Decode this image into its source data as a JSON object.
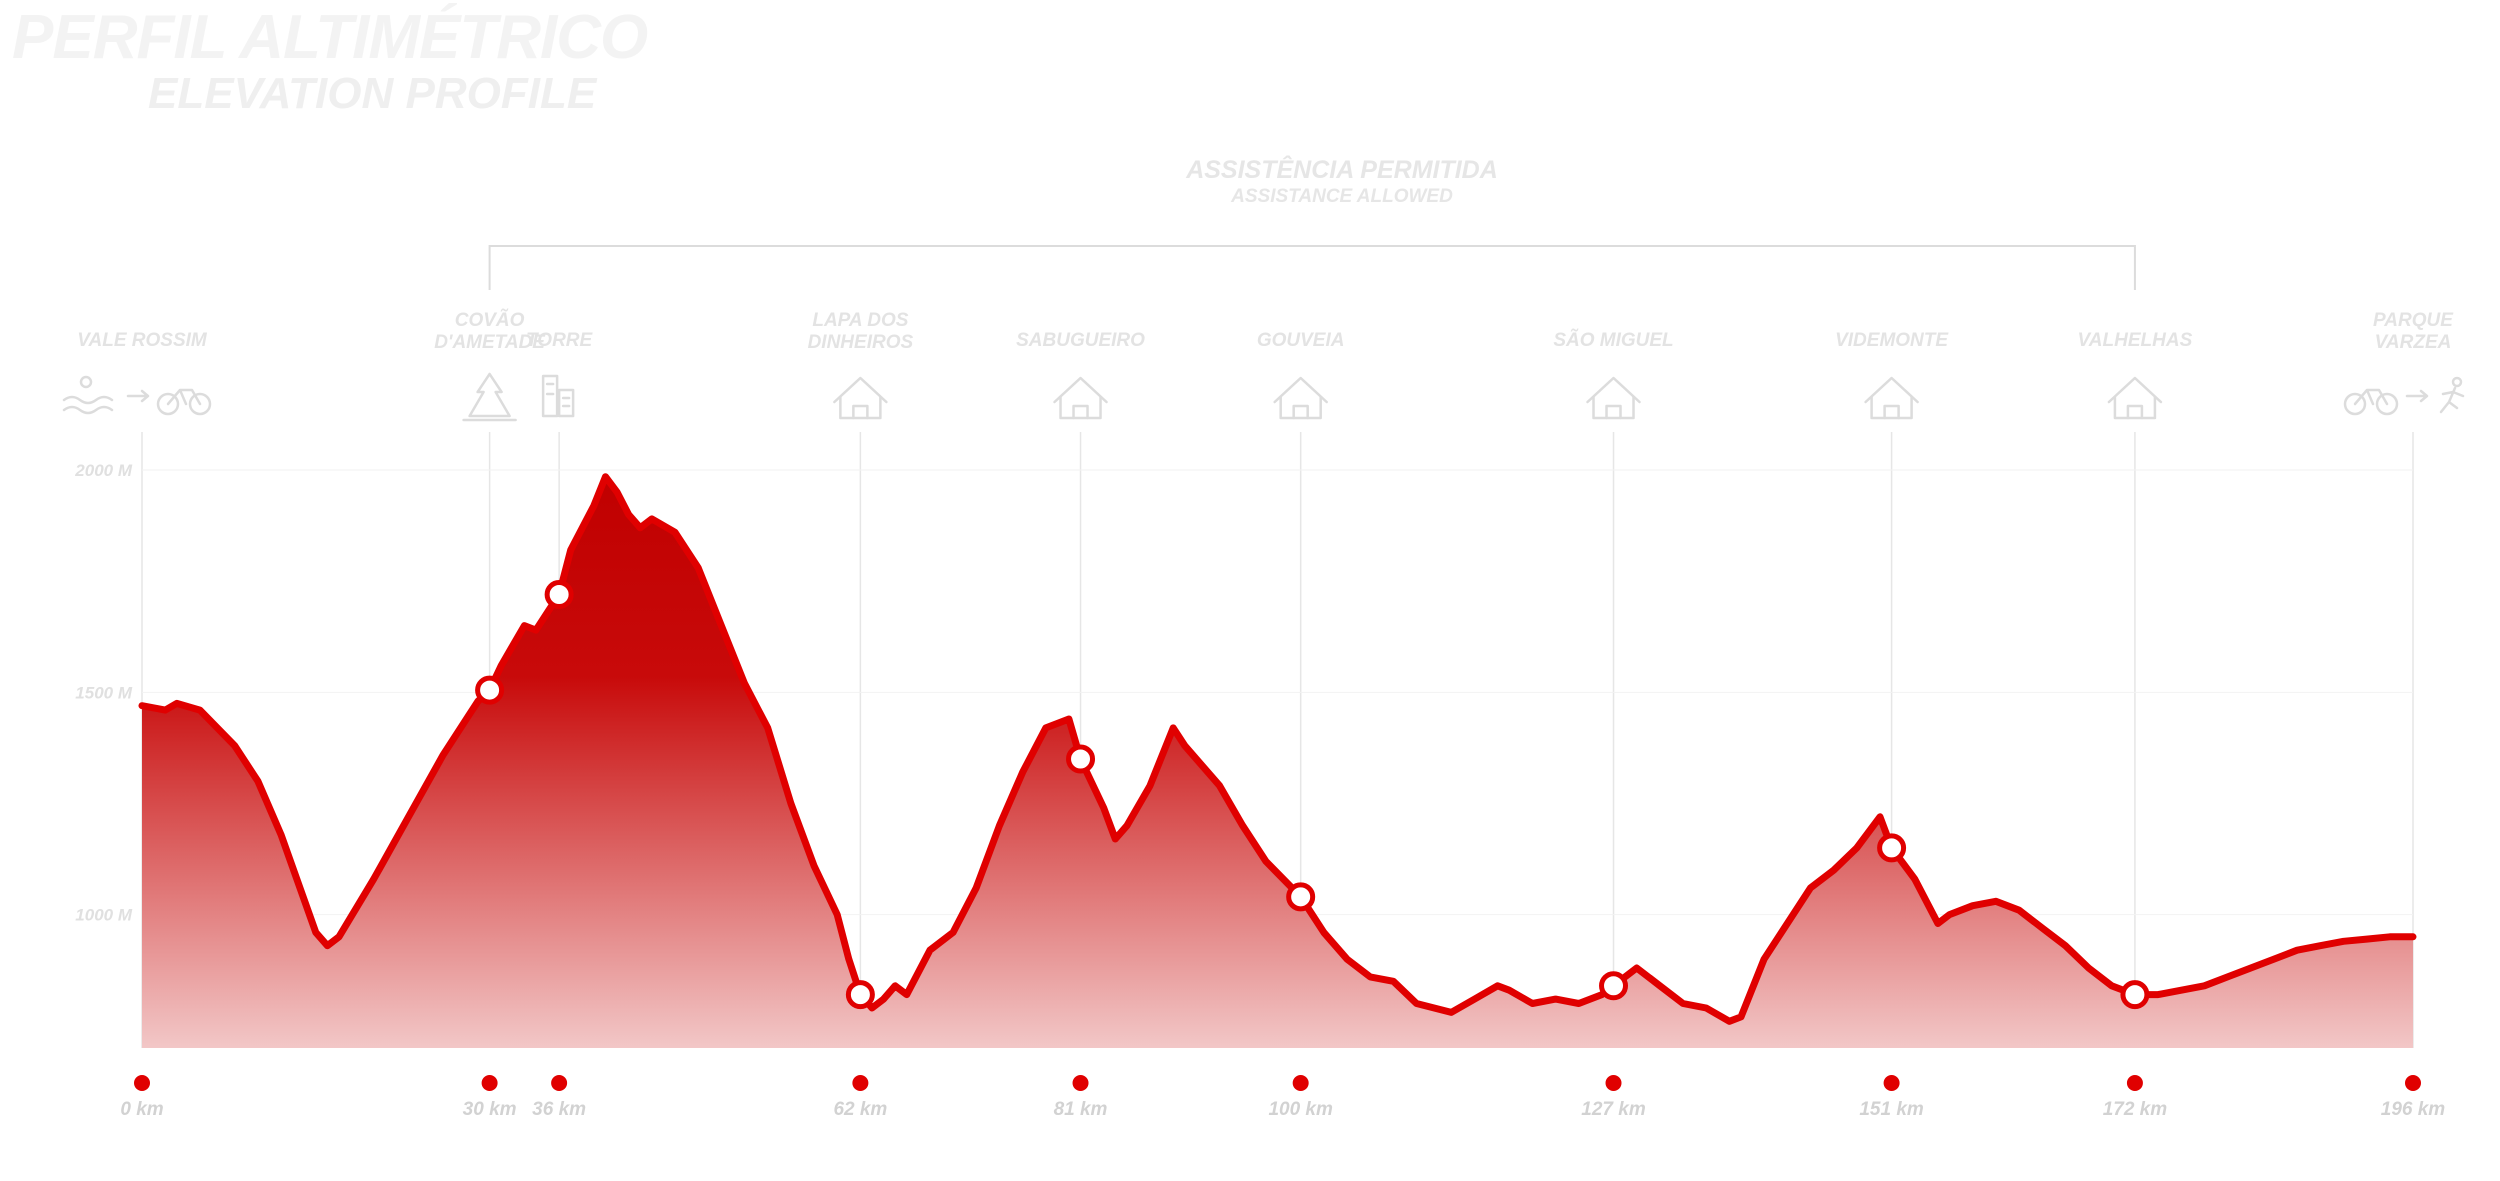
{
  "title": "PERFIL ALTIMÉTRICO",
  "subtitle": "ELEVATION PROFILE",
  "assistance": {
    "label": "ASSISTÊNCIA PERMITIDA",
    "label_en": "ASSISTANCE ALLOWED",
    "from_km": 30,
    "to_km": 172
  },
  "colors": {
    "line": "#e00000",
    "fill_top": "#c00000",
    "fill_bottom": "#f2c7c7",
    "guide": "#e6e6e6",
    "text": "#dddddd"
  },
  "chart_data": {
    "type": "area",
    "xlim": [
      0,
      196
    ],
    "y_ticks": [
      {
        "value": 2000,
        "label": "2000 M"
      },
      {
        "value": 1500,
        "label": "1500 M"
      },
      {
        "value": 1000,
        "label": "1000 M"
      }
    ],
    "waypoints": [
      {
        "name": "VALE ROSSIM",
        "km": 0,
        "km_label": "0 km",
        "icon": "swim-to-bike-icon",
        "marker": false
      },
      {
        "name": "COVÃO D'AMETADE",
        "km": 30,
        "km_label": "30 km",
        "icon": "forest-icon",
        "marker": true
      },
      {
        "name": "TORRE",
        "km": 36,
        "km_label": "36 km",
        "icon": "tower-icon",
        "marker": true
      },
      {
        "name": "LAPA DOS DINHEIROS",
        "km": 62,
        "km_label": "62 km",
        "icon": "house-icon",
        "marker": true
      },
      {
        "name": "SABUGUEIRO",
        "km": 81,
        "km_label": "81 km",
        "icon": "house-icon",
        "marker": true
      },
      {
        "name": "GOUVEIA",
        "km": 100,
        "km_label": "100 km",
        "icon": "house-icon",
        "marker": true
      },
      {
        "name": "SÃO MIGUEL",
        "km": 127,
        "km_label": "127 km",
        "icon": "house-icon",
        "marker": true
      },
      {
        "name": "VIDEMONTE",
        "km": 151,
        "km_label": "151 km",
        "icon": "house-icon",
        "marker": true
      },
      {
        "name": "VALHELHAS",
        "km": 172,
        "km_label": "172 km",
        "icon": "house-icon",
        "marker": true
      },
      {
        "name": "PARQUE VARZEA",
        "km": 196,
        "km_label": "196 km",
        "icon": "bike-to-run-icon",
        "marker": false
      }
    ],
    "profile": [
      [
        0,
        1470
      ],
      [
        2,
        1460
      ],
      [
        3,
        1475
      ],
      [
        5,
        1460
      ],
      [
        8,
        1380
      ],
      [
        10,
        1300
      ],
      [
        12,
        1180
      ],
      [
        15,
        960
      ],
      [
        16,
        930
      ],
      [
        17,
        950
      ],
      [
        20,
        1080
      ],
      [
        23,
        1220
      ],
      [
        26,
        1360
      ],
      [
        28,
        1440
      ],
      [
        29,
        1480
      ],
      [
        30,
        1505
      ],
      [
        31,
        1560
      ],
      [
        33,
        1650
      ],
      [
        34,
        1640
      ],
      [
        35,
        1680
      ],
      [
        36,
        1720
      ],
      [
        37,
        1820
      ],
      [
        39,
        1920
      ],
      [
        40,
        1985
      ],
      [
        41,
        1950
      ],
      [
        42,
        1900
      ],
      [
        43,
        1870
      ],
      [
        44,
        1890
      ],
      [
        46,
        1860
      ],
      [
        48,
        1780
      ],
      [
        50,
        1650
      ],
      [
        52,
        1520
      ],
      [
        54,
        1420
      ],
      [
        56,
        1250
      ],
      [
        58,
        1110
      ],
      [
        60,
        1000
      ],
      [
        61,
        900
      ],
      [
        62,
        820
      ],
      [
        63,
        790
      ],
      [
        64,
        810
      ],
      [
        65,
        840
      ],
      [
        66,
        820
      ],
      [
        68,
        920
      ],
      [
        70,
        960
      ],
      [
        72,
        1060
      ],
      [
        74,
        1200
      ],
      [
        76,
        1320
      ],
      [
        78,
        1420
      ],
      [
        80,
        1440
      ],
      [
        81,
        1350
      ],
      [
        83,
        1240
      ],
      [
        84,
        1170
      ],
      [
        85,
        1200
      ],
      [
        87,
        1290
      ],
      [
        89,
        1420
      ],
      [
        90,
        1380
      ],
      [
        93,
        1290
      ],
      [
        95,
        1200
      ],
      [
        97,
        1120
      ],
      [
        100,
        1040
      ],
      [
        102,
        960
      ],
      [
        104,
        900
      ],
      [
        106,
        860
      ],
      [
        108,
        850
      ],
      [
        110,
        800
      ],
      [
        113,
        780
      ],
      [
        115,
        810
      ],
      [
        117,
        840
      ],
      [
        118,
        830
      ],
      [
        120,
        800
      ],
      [
        122,
        810
      ],
      [
        124,
        800
      ],
      [
        126,
        820
      ],
      [
        128,
        860
      ],
      [
        129,
        880
      ],
      [
        131,
        840
      ],
      [
        133,
        800
      ],
      [
        135,
        790
      ],
      [
        137,
        760
      ],
      [
        138,
        770
      ],
      [
        140,
        900
      ],
      [
        142,
        980
      ],
      [
        144,
        1060
      ],
      [
        146,
        1100
      ],
      [
        148,
        1150
      ],
      [
        150,
        1220
      ],
      [
        151,
        1150
      ],
      [
        153,
        1080
      ],
      [
        155,
        980
      ],
      [
        156,
        1000
      ],
      [
        158,
        1020
      ],
      [
        160,
        1030
      ],
      [
        162,
        1010
      ],
      [
        164,
        970
      ],
      [
        166,
        930
      ],
      [
        168,
        880
      ],
      [
        170,
        840
      ],
      [
        172,
        820
      ],
      [
        174,
        820
      ],
      [
        176,
        830
      ],
      [
        178,
        840
      ],
      [
        180,
        860
      ],
      [
        182,
        880
      ],
      [
        184,
        900
      ],
      [
        186,
        920
      ],
      [
        188,
        930
      ],
      [
        190,
        940
      ],
      [
        192,
        945
      ],
      [
        194,
        950
      ],
      [
        196,
        950
      ]
    ]
  }
}
